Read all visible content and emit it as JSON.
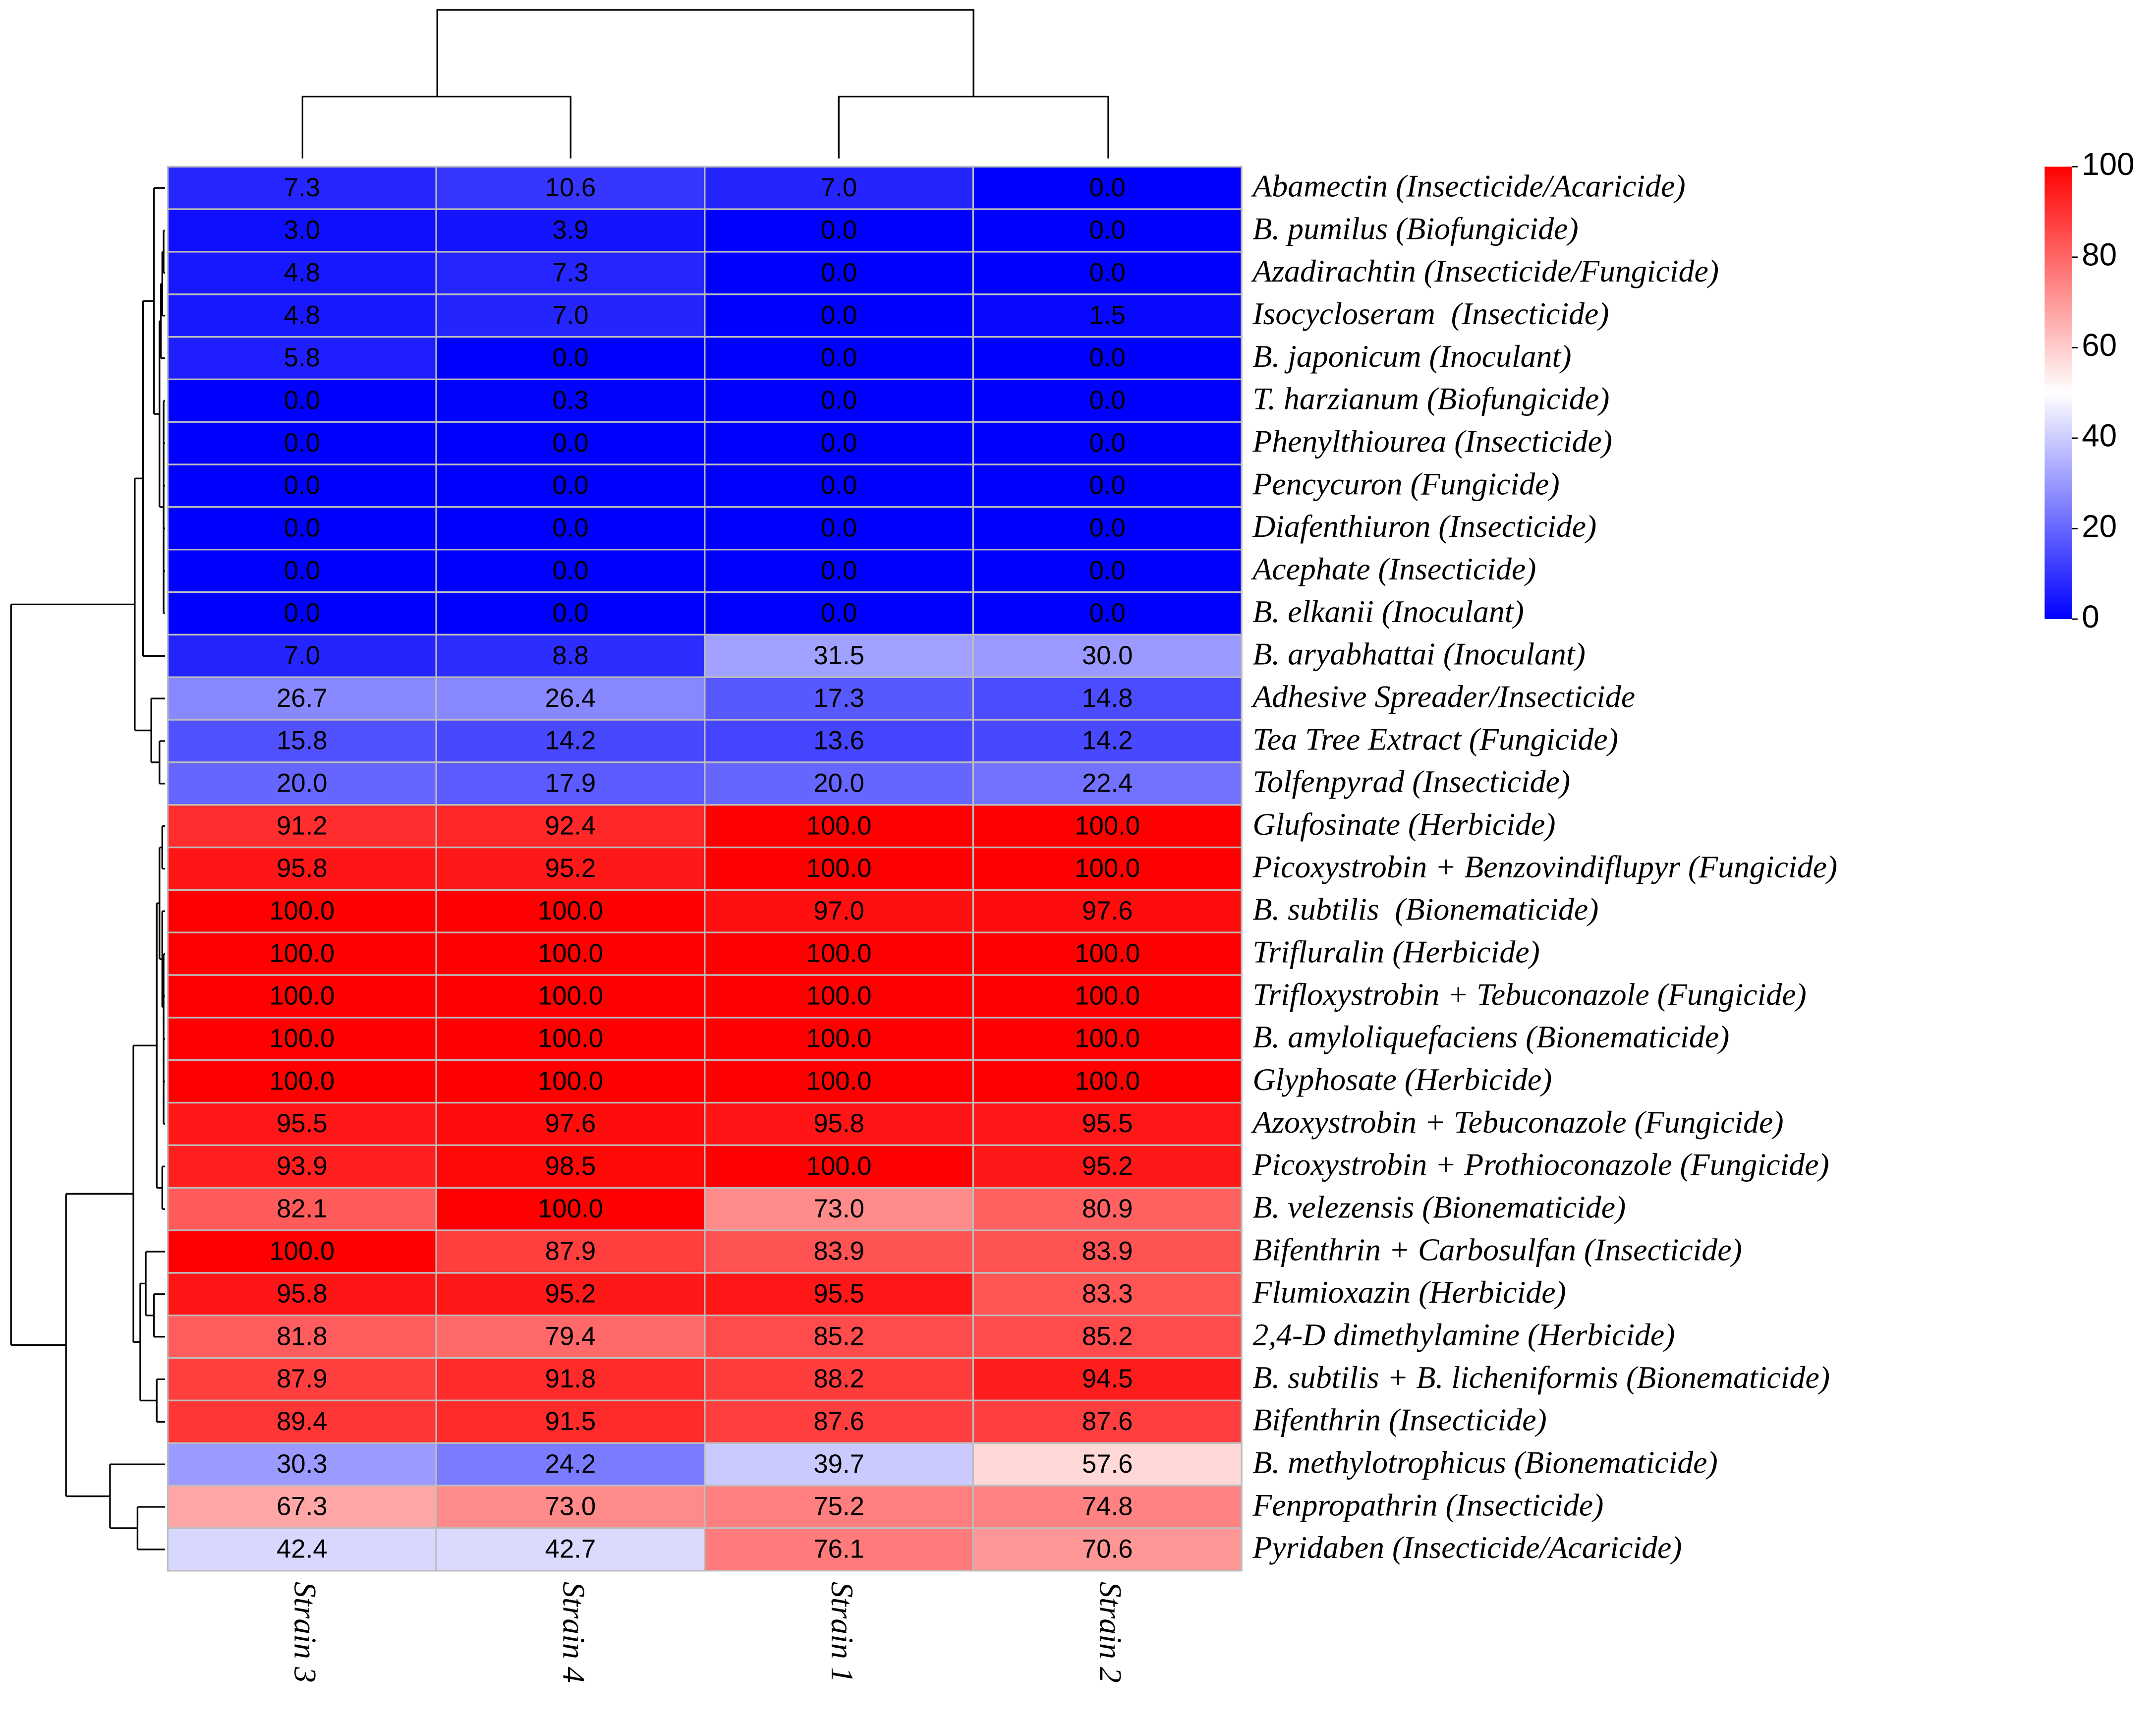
{
  "chart_data": {
    "type": "heatmap",
    "columns": [
      "Strain 3",
      "Strain 4",
      "Strain 1",
      "Strain 2"
    ],
    "rows": [
      "Abamectin (Insecticide/Acaricide)",
      "B. pumilus (Biofungicide)",
      "Azadirachtin (Insecticide/Fungicide)",
      "Isocycloseram  (Insecticide)",
      "B. japonicum (Inoculant)",
      "T. harzianum (Biofungicide)",
      "Phenylthiourea (Insecticide)",
      "Pencycuron (Fungicide)",
      "Diafenthiuron (Insecticide)",
      "Acephate (Insecticide)",
      "B. elkanii (Inoculant)",
      "B. aryabhattai (Inoculant)",
      "Adhesive Spreader/Insecticide",
      "Tea Tree Extract (Fungicide)",
      "Tolfenpyrad (Insecticide)",
      "Glufosinate (Herbicide)",
      "Picoxystrobin + Benzovindiflupyr (Fungicide)",
      "B. subtilis  (Bionematicide)",
      "Trifluralin (Herbicide)",
      "Trifloxystrobin + Tebuconazole (Fungicide)",
      "B. amyloliquefaciens (Bionematicide)",
      "Glyphosate (Herbicide)",
      "Azoxystrobin + Tebuconazole (Fungicide)",
      "Picoxystrobin + Prothioconazole (Fungicide)",
      "B. velezensis (Bionematicide)",
      "Bifenthrin + Carbosulfan (Insecticide)",
      "Flumioxazin (Herbicide)",
      "2,4-D dimethylamine (Herbicide)",
      "B. subtilis + B. licheniformis (Bionematicide)",
      "Bifenthrin (Insecticide)",
      "B. methylotrophicus (Bionematicide)",
      "Fenpropathrin (Insecticide)",
      "Pyridaben (Insecticide/Acaricide)"
    ],
    "values": [
      [
        7.3,
        10.6,
        7,
        0
      ],
      [
        3,
        3.9,
        0,
        0
      ],
      [
        4.8,
        7.3,
        0,
        0
      ],
      [
        4.8,
        7,
        0,
        1.5
      ],
      [
        5.8,
        0,
        0,
        0
      ],
      [
        0,
        0.3,
        0,
        0
      ],
      [
        0,
        0,
        0,
        0
      ],
      [
        0,
        0,
        0,
        0
      ],
      [
        0,
        0,
        0,
        0
      ],
      [
        0,
        0,
        0,
        0
      ],
      [
        0,
        0,
        0,
        0
      ],
      [
        7,
        8.8,
        31.5,
        30
      ],
      [
        26.7,
        26.4,
        17.3,
        14.8
      ],
      [
        15.8,
        14.2,
        13.6,
        14.2
      ],
      [
        20,
        17.9,
        20,
        22.4
      ],
      [
        91.2,
        92.4,
        100,
        100
      ],
      [
        95.8,
        95.2,
        100,
        100
      ],
      [
        100,
        100,
        97,
        97.6
      ],
      [
        100,
        100,
        100,
        100
      ],
      [
        100,
        100,
        100,
        100
      ],
      [
        100,
        100,
        100,
        100
      ],
      [
        100,
        100,
        100,
        100
      ],
      [
        95.5,
        97.6,
        95.8,
        95.5
      ],
      [
        93.9,
        98.5,
        100,
        95.2
      ],
      [
        82.1,
        100,
        73,
        80.9
      ],
      [
        100,
        87.9,
        83.9,
        83.9
      ],
      [
        95.8,
        95.2,
        95.5,
        83.3
      ],
      [
        81.8,
        79.4,
        85.2,
        85.2
      ],
      [
        87.9,
        91.8,
        88.2,
        94.5
      ],
      [
        89.4,
        91.5,
        87.6,
        87.6
      ],
      [
        30.3,
        24.2,
        39.7,
        57.6
      ],
      [
        67.3,
        73,
        75.2,
        74.8
      ],
      [
        42.4,
        42.7,
        76.1,
        70.6
      ]
    ],
    "value_labels": [
      [
        "7.3",
        "10.6",
        "7.0",
        "0.0"
      ],
      [
        "3.0",
        "3.9",
        "0.0",
        "0.0"
      ],
      [
        "4.8",
        "7.3",
        "0.0",
        "0.0"
      ],
      [
        "4.8",
        "7.0",
        "0.0",
        "1.5"
      ],
      [
        "5.8",
        "0.0",
        "0.0",
        "0.0"
      ],
      [
        "0.0",
        "0.3",
        "0.0",
        "0.0"
      ],
      [
        "0.0",
        "0.0",
        "0.0",
        "0.0"
      ],
      [
        "0.0",
        "0.0",
        "0.0",
        "0.0"
      ],
      [
        "0.0",
        "0.0",
        "0.0",
        "0.0"
      ],
      [
        "0.0",
        "0.0",
        "0.0",
        "0.0"
      ],
      [
        "0.0",
        "0.0",
        "0.0",
        "0.0"
      ],
      [
        "7.0",
        "8.8",
        "31.5",
        "30.0"
      ],
      [
        "26.7",
        "26.4",
        "17.3",
        "14.8"
      ],
      [
        "15.8",
        "14.2",
        "13.6",
        "14.2"
      ],
      [
        "20.0",
        "17.9",
        "20.0",
        "22.4"
      ],
      [
        "91.2",
        "92.4",
        "100.0",
        "100.0"
      ],
      [
        "95.8",
        "95.2",
        "100.0",
        "100.0"
      ],
      [
        "100.0",
        "100.0",
        "97.0",
        "97.6"
      ],
      [
        "100.0",
        "100.0",
        "100.0",
        "100.0"
      ],
      [
        "100.0",
        "100.0",
        "100.0",
        "100.0"
      ],
      [
        "100.0",
        "100.0",
        "100.0",
        "100.0"
      ],
      [
        "100.0",
        "100.0",
        "100.0",
        "100.0"
      ],
      [
        "95.5",
        "97.6",
        "95.8",
        "95.5"
      ],
      [
        "93.9",
        "98.5",
        "100.0",
        "95.2"
      ],
      [
        "82.1",
        "100.0",
        "73.0",
        "80.9"
      ],
      [
        "100.0",
        "87.9",
        "83.9",
        "83.9"
      ],
      [
        "95.8",
        "95.2",
        "95.5",
        "83.3"
      ],
      [
        "81.8",
        "79.4",
        "85.2",
        "85.2"
      ],
      [
        "87.9",
        "91.8",
        "88.2",
        "94.5"
      ],
      [
        "89.4",
        "91.5",
        "87.6",
        "87.6"
      ],
      [
        "30.3",
        "24.2",
        "39.7",
        "57.6"
      ],
      [
        "67.3",
        "73.0",
        "75.2",
        "74.8"
      ],
      [
        "42.4",
        "42.7",
        "76.1",
        "70.6"
      ]
    ],
    "colorscale": [
      "#0000ff",
      "#ffffff",
      "#ff0000"
    ],
    "zlim": [
      0,
      100
    ],
    "zticks": [
      0,
      20,
      40,
      60,
      80,
      100
    ]
  }
}
